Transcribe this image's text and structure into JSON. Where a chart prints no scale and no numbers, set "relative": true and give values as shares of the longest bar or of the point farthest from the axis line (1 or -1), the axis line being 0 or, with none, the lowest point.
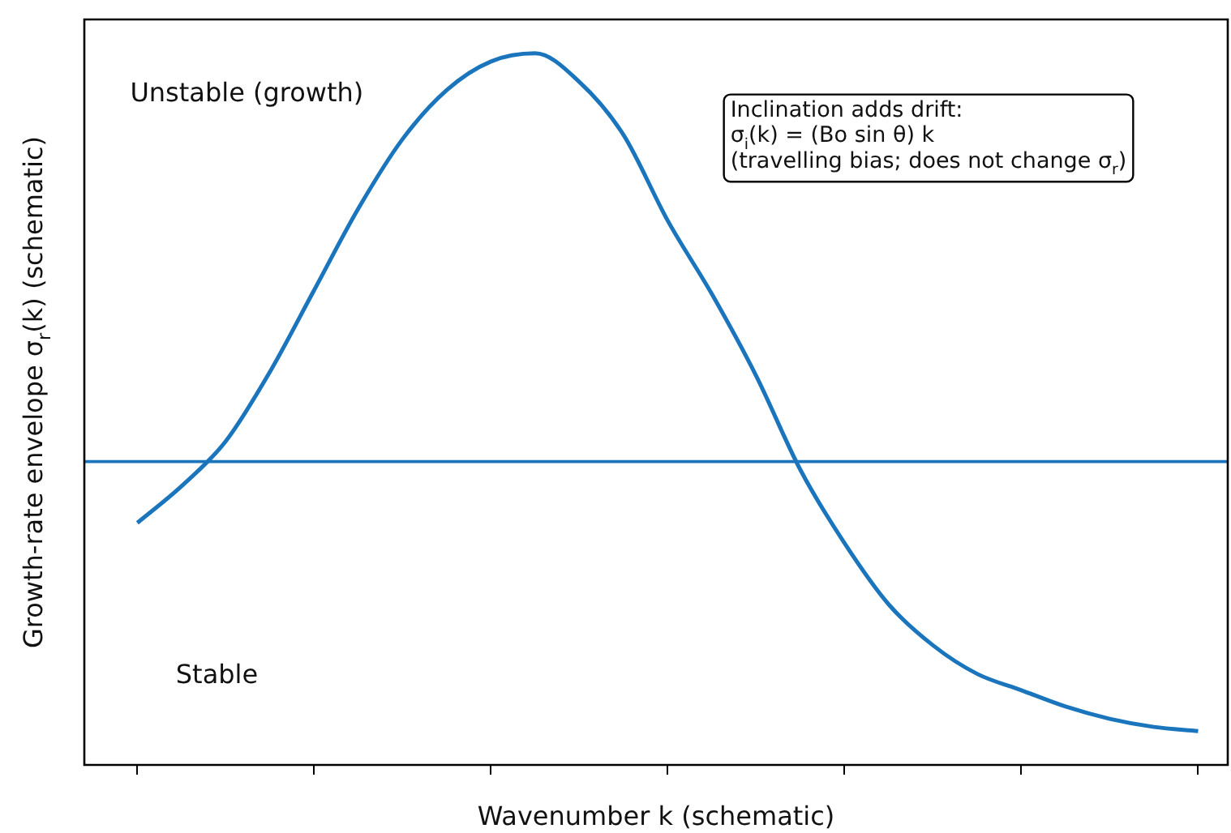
{
  "chart_data": {
    "type": "line",
    "relative": true,
    "xlabel": "Wavenumber k (schematic)",
    "ylabel": "Growth-rate envelope σ$_{r}$(k) (schematic)",
    "categories": [
      null,
      null,
      null,
      null,
      null,
      null,
      null,
      null,
      null,
      null,
      null,
      null,
      null,
      null,
      null,
      null,
      null,
      null,
      null,
      null,
      null,
      null,
      null,
      null,
      null
    ],
    "series": [
      {
        "color": "#1a75bc",
        "values": [
          -0.15,
          -0.06,
          0.05,
          0.22,
          0.42,
          0.62,
          0.79,
          0.91,
          0.98,
          1.0,
          0.93,
          0.8,
          0.59,
          0.41,
          0.21,
          -0.02,
          -0.2,
          -0.35,
          -0.45,
          -0.52,
          -0.56,
          -0.6,
          -0.63,
          -0.65,
          -0.66
        ]
      }
    ],
    "ref_lines": [
      {
        "axis": "y",
        "value": 0,
        "color": "#1a75bc"
      }
    ],
    "annotations": [
      "Unstable (growth)",
      "Stable",
      "Inclination adds drift:\nσ$_{i}$(k) = (Bo sin θ) k\n(travelling bias; does not change σ$_{r}$)"
    ],
    "tick_labels": false,
    "grid": false,
    "legend": false,
    "marker": "none",
    "line_style": "solid"
  }
}
